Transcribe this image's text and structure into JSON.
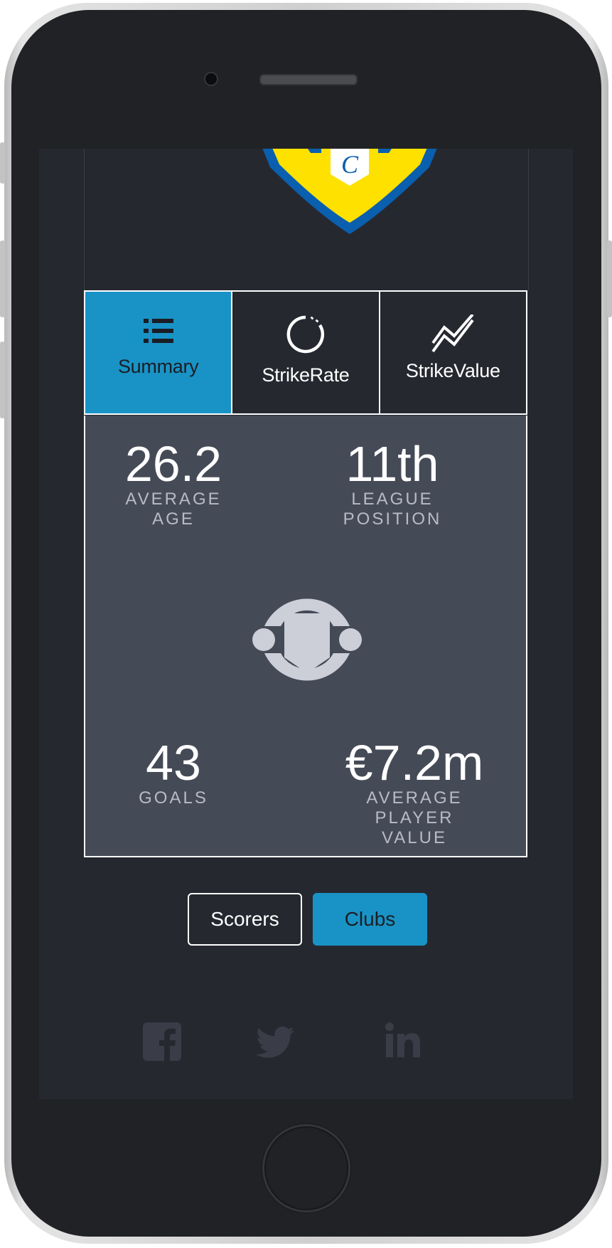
{
  "tabs": [
    {
      "label": "Summary",
      "icon": "list-icon",
      "active": true
    },
    {
      "label": "StrikeRate",
      "icon": "circle-progress-icon",
      "active": false
    },
    {
      "label": "StrikeValue",
      "icon": "line-chart-icon",
      "active": false
    }
  ],
  "stats": {
    "average_age": {
      "value": "26.2",
      "label": "AVERAGE AGE"
    },
    "league_position": {
      "value": "11th",
      "label_line1": "LEAGUE",
      "label_line2": "POSITION"
    },
    "goals": {
      "value": "43",
      "label": "GOALS"
    },
    "average_player_value": {
      "value": "€7.2m",
      "label_line1": "AVERAGE PLAYER",
      "label_line2": "VALUE"
    }
  },
  "toggle": {
    "scorers_label": "Scorers",
    "clubs_label": "Clubs",
    "selected": "Clubs"
  },
  "crest": {
    "letter": "C"
  },
  "social": [
    "facebook-icon",
    "twitter-icon",
    "linkedin-icon"
  ],
  "colors": {
    "accent": "#1993c6",
    "background": "#262830",
    "panel": "#454a57",
    "crest_yellow": "#ffe100",
    "crest_blue": "#0a5fae"
  }
}
